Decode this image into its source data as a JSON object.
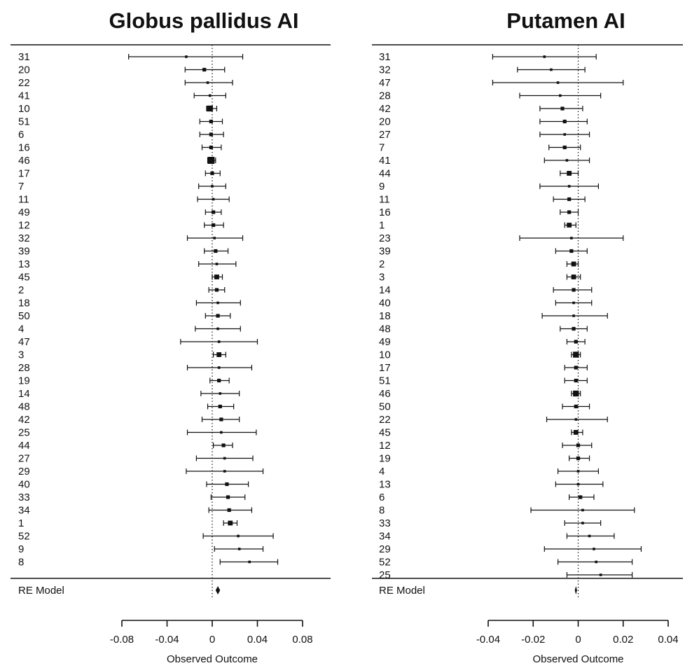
{
  "chart_data": [
    {
      "type": "forest",
      "title": "Globus pallidus AI",
      "xlabel": "Observed Outcome",
      "xlim": [
        -0.08,
        0.08
      ],
      "xticks": [
        "-0.08",
        "-0.04",
        "0",
        "0.04",
        "0.08"
      ],
      "xtick_values": [
        -0.08,
        -0.04,
        0,
        0.04,
        0.08
      ],
      "reference_line": 0,
      "summary_label": "RE Model",
      "summary": {
        "estimate": 0.005,
        "lower": 0.003,
        "upper": 0.007
      },
      "studies": [
        {
          "label": "31",
          "estimate": -0.023,
          "lower": -0.074,
          "upper": 0.027,
          "weight": 1
        },
        {
          "label": "20",
          "estimate": -0.007,
          "lower": -0.024,
          "upper": 0.011,
          "weight": 2
        },
        {
          "label": "22",
          "estimate": -0.004,
          "lower": -0.024,
          "upper": 0.018,
          "weight": 1
        },
        {
          "label": "41",
          "estimate": -0.002,
          "lower": -0.016,
          "upper": 0.012,
          "weight": 1
        },
        {
          "label": "10",
          "estimate": -0.002,
          "lower": -0.005,
          "upper": 0.004,
          "weight": 4
        },
        {
          "label": "51",
          "estimate": -0.001,
          "lower": -0.011,
          "upper": 0.009,
          "weight": 2
        },
        {
          "label": "6",
          "estimate": -0.001,
          "lower": -0.011,
          "upper": 0.01,
          "weight": 2
        },
        {
          "label": "16",
          "estimate": -0.001,
          "lower": -0.009,
          "upper": 0.008,
          "weight": 2
        },
        {
          "label": "46",
          "estimate": -0.001,
          "lower": -0.004,
          "upper": 0.003,
          "weight": 5
        },
        {
          "label": "17",
          "estimate": 0.0,
          "lower": -0.006,
          "upper": 0.007,
          "weight": 2
        },
        {
          "label": "7",
          "estimate": 0.0,
          "lower": -0.012,
          "upper": 0.012,
          "weight": 1
        },
        {
          "label": "11",
          "estimate": 0.001,
          "lower": -0.013,
          "upper": 0.015,
          "weight": 1
        },
        {
          "label": "49",
          "estimate": 0.001,
          "lower": -0.006,
          "upper": 0.008,
          "weight": 2
        },
        {
          "label": "12",
          "estimate": 0.001,
          "lower": -0.007,
          "upper": 0.01,
          "weight": 2
        },
        {
          "label": "32",
          "estimate": 0.002,
          "lower": -0.022,
          "upper": 0.027,
          "weight": 1
        },
        {
          "label": "39",
          "estimate": 0.003,
          "lower": -0.007,
          "upper": 0.014,
          "weight": 2
        },
        {
          "label": "13",
          "estimate": 0.004,
          "lower": -0.012,
          "upper": 0.021,
          "weight": 1
        },
        {
          "label": "45",
          "estimate": 0.004,
          "lower": 0.0,
          "upper": 0.009,
          "weight": 3
        },
        {
          "label": "2",
          "estimate": 0.004,
          "lower": -0.003,
          "upper": 0.011,
          "weight": 2
        },
        {
          "label": "18",
          "estimate": 0.005,
          "lower": -0.014,
          "upper": 0.025,
          "weight": 1
        },
        {
          "label": "50",
          "estimate": 0.005,
          "lower": -0.006,
          "upper": 0.016,
          "weight": 2
        },
        {
          "label": "4",
          "estimate": 0.005,
          "lower": -0.015,
          "upper": 0.025,
          "weight": 1
        },
        {
          "label": "47",
          "estimate": 0.006,
          "lower": -0.028,
          "upper": 0.04,
          "weight": 1
        },
        {
          "label": "3",
          "estimate": 0.006,
          "lower": 0.001,
          "upper": 0.012,
          "weight": 3
        },
        {
          "label": "28",
          "estimate": 0.006,
          "lower": -0.022,
          "upper": 0.035,
          "weight": 1
        },
        {
          "label": "19",
          "estimate": 0.006,
          "lower": -0.002,
          "upper": 0.015,
          "weight": 2
        },
        {
          "label": "14",
          "estimate": 0.007,
          "lower": -0.01,
          "upper": 0.024,
          "weight": 1
        },
        {
          "label": "48",
          "estimate": 0.007,
          "lower": -0.004,
          "upper": 0.019,
          "weight": 2
        },
        {
          "label": "42",
          "estimate": 0.008,
          "lower": -0.009,
          "upper": 0.024,
          "weight": 2
        },
        {
          "label": "25",
          "estimate": 0.008,
          "lower": -0.022,
          "upper": 0.039,
          "weight": 1
        },
        {
          "label": "44",
          "estimate": 0.01,
          "lower": 0.001,
          "upper": 0.018,
          "weight": 2
        },
        {
          "label": "27",
          "estimate": 0.011,
          "lower": -0.014,
          "upper": 0.036,
          "weight": 1
        },
        {
          "label": "29",
          "estimate": 0.011,
          "lower": -0.023,
          "upper": 0.045,
          "weight": 1
        },
        {
          "label": "40",
          "estimate": 0.013,
          "lower": -0.005,
          "upper": 0.032,
          "weight": 2
        },
        {
          "label": "33",
          "estimate": 0.014,
          "lower": -0.001,
          "upper": 0.029,
          "weight": 2
        },
        {
          "label": "34",
          "estimate": 0.015,
          "lower": -0.003,
          "upper": 0.035,
          "weight": 2
        },
        {
          "label": "1",
          "estimate": 0.016,
          "lower": 0.01,
          "upper": 0.022,
          "weight": 3
        },
        {
          "label": "52",
          "estimate": 0.023,
          "lower": -0.008,
          "upper": 0.054,
          "weight": 1
        },
        {
          "label": "9",
          "estimate": 0.024,
          "lower": 0.002,
          "upper": 0.045,
          "weight": 1
        },
        {
          "label": "8",
          "estimate": 0.033,
          "lower": 0.007,
          "upper": 0.058,
          "weight": 1
        }
      ]
    },
    {
      "type": "forest",
      "title": "Putamen AI",
      "xlabel": "Observed Outcome",
      "xlim": [
        -0.04,
        0.04
      ],
      "xticks": [
        "-0.04",
        "-0.02",
        "0",
        "0.02",
        "0.04"
      ],
      "xtick_values": [
        -0.04,
        -0.02,
        0,
        0.02,
        0.04
      ],
      "reference_line": 0,
      "summary_label": "RE Model",
      "summary": {
        "estimate": -0.001,
        "lower": -0.0015,
        "upper": -0.0005
      },
      "studies": [
        {
          "label": "31",
          "estimate": -0.015,
          "lower": -0.038,
          "upper": 0.008,
          "weight": 1
        },
        {
          "label": "32",
          "estimate": -0.012,
          "lower": -0.027,
          "upper": 0.003,
          "weight": 1
        },
        {
          "label": "47",
          "estimate": -0.009,
          "lower": -0.038,
          "upper": 0.02,
          "weight": 1
        },
        {
          "label": "28",
          "estimate": -0.008,
          "lower": -0.026,
          "upper": 0.01,
          "weight": 1
        },
        {
          "label": "42",
          "estimate": -0.007,
          "lower": -0.017,
          "upper": 0.002,
          "weight": 2
        },
        {
          "label": "20",
          "estimate": -0.006,
          "lower": -0.017,
          "upper": 0.004,
          "weight": 2
        },
        {
          "label": "27",
          "estimate": -0.006,
          "lower": -0.017,
          "upper": 0.005,
          "weight": 1
        },
        {
          "label": "7",
          "estimate": -0.006,
          "lower": -0.013,
          "upper": 0.001,
          "weight": 2
        },
        {
          "label": "41",
          "estimate": -0.005,
          "lower": -0.015,
          "upper": 0.005,
          "weight": 1
        },
        {
          "label": "44",
          "estimate": -0.004,
          "lower": -0.008,
          "upper": 0.0,
          "weight": 3
        },
        {
          "label": "9",
          "estimate": -0.004,
          "lower": -0.017,
          "upper": 0.009,
          "weight": 1
        },
        {
          "label": "11",
          "estimate": -0.004,
          "lower": -0.011,
          "upper": 0.003,
          "weight": 2
        },
        {
          "label": "16",
          "estimate": -0.004,
          "lower": -0.008,
          "upper": 0.0,
          "weight": 2
        },
        {
          "label": "1",
          "estimate": -0.004,
          "lower": -0.006,
          "upper": -0.001,
          "weight": 3
        },
        {
          "label": "23",
          "estimate": -0.003,
          "lower": -0.026,
          "upper": 0.02,
          "weight": 1
        },
        {
          "label": "39",
          "estimate": -0.003,
          "lower": -0.01,
          "upper": 0.004,
          "weight": 2
        },
        {
          "label": "2",
          "estimate": -0.002,
          "lower": -0.005,
          "upper": 0.0,
          "weight": 3
        },
        {
          "label": "3",
          "estimate": -0.002,
          "lower": -0.005,
          "upper": 0.001,
          "weight": 3
        },
        {
          "label": "14",
          "estimate": -0.002,
          "lower": -0.011,
          "upper": 0.006,
          "weight": 2
        },
        {
          "label": "40",
          "estimate": -0.002,
          "lower": -0.01,
          "upper": 0.006,
          "weight": 1
        },
        {
          "label": "18",
          "estimate": -0.002,
          "lower": -0.016,
          "upper": 0.013,
          "weight": 1
        },
        {
          "label": "48",
          "estimate": -0.002,
          "lower": -0.008,
          "upper": 0.004,
          "weight": 2
        },
        {
          "label": "49",
          "estimate": -0.001,
          "lower": -0.005,
          "upper": 0.003,
          "weight": 2
        },
        {
          "label": "10",
          "estimate": -0.001,
          "lower": -0.003,
          "upper": 0.001,
          "weight": 4
        },
        {
          "label": "17",
          "estimate": -0.001,
          "lower": -0.006,
          "upper": 0.004,
          "weight": 2
        },
        {
          "label": "51",
          "estimate": -0.001,
          "lower": -0.006,
          "upper": 0.004,
          "weight": 2
        },
        {
          "label": "46",
          "estimate": -0.001,
          "lower": -0.003,
          "upper": 0.001,
          "weight": 4
        },
        {
          "label": "50",
          "estimate": -0.001,
          "lower": -0.007,
          "upper": 0.005,
          "weight": 2
        },
        {
          "label": "22",
          "estimate": -0.001,
          "lower": -0.014,
          "upper": 0.013,
          "weight": 1
        },
        {
          "label": "45",
          "estimate": -0.001,
          "lower": -0.003,
          "upper": 0.002,
          "weight": 3
        },
        {
          "label": "12",
          "estimate": 0.0,
          "lower": -0.007,
          "upper": 0.006,
          "weight": 2
        },
        {
          "label": "19",
          "estimate": 0.0,
          "lower": -0.004,
          "upper": 0.005,
          "weight": 2
        },
        {
          "label": "4",
          "estimate": 0.0,
          "lower": -0.009,
          "upper": 0.009,
          "weight": 1
        },
        {
          "label": "13",
          "estimate": 0.0,
          "lower": -0.01,
          "upper": 0.011,
          "weight": 1
        },
        {
          "label": "6",
          "estimate": 0.001,
          "lower": -0.004,
          "upper": 0.007,
          "weight": 2
        },
        {
          "label": "8",
          "estimate": 0.002,
          "lower": -0.021,
          "upper": 0.025,
          "weight": 1
        },
        {
          "label": "33",
          "estimate": 0.002,
          "lower": -0.006,
          "upper": 0.01,
          "weight": 1
        },
        {
          "label": "34",
          "estimate": 0.005,
          "lower": -0.005,
          "upper": 0.016,
          "weight": 1
        },
        {
          "label": "29",
          "estimate": 0.007,
          "lower": -0.015,
          "upper": 0.028,
          "weight": 1
        },
        {
          "label": "52",
          "estimate": 0.008,
          "lower": -0.009,
          "upper": 0.024,
          "weight": 1
        },
        {
          "label": "25",
          "estimate": 0.01,
          "lower": -0.005,
          "upper": 0.024,
          "weight": 1
        }
      ]
    }
  ]
}
